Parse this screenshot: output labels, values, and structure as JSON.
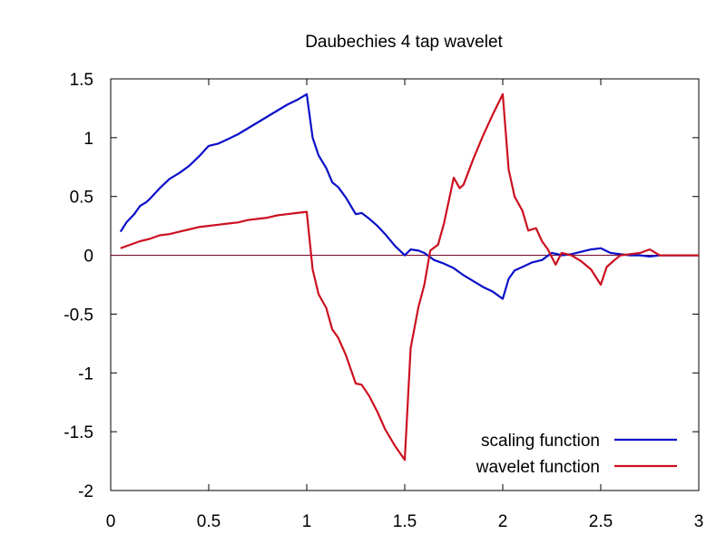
{
  "chart_data": {
    "type": "line",
    "title": "Daubechies 4 tap wavelet",
    "xlabel": "",
    "ylabel": "",
    "xlim": [
      0,
      3
    ],
    "ylim": [
      -2,
      1.5
    ],
    "x_ticks": [
      0,
      0.5,
      1,
      1.5,
      2,
      2.5,
      3
    ],
    "x_tick_labels": [
      "0",
      "0.5",
      "1",
      "1.5",
      "2",
      "2.5",
      "3"
    ],
    "y_ticks": [
      1.5,
      1,
      0.5,
      0,
      -0.5,
      -1,
      -1.5,
      -2
    ],
    "y_tick_labels": [
      "1.5",
      "1",
      "0.5",
      "0",
      "-0.5",
      "-1",
      "-1.5",
      "-2"
    ],
    "grid": false,
    "legend_position": "bottom-right",
    "zero_line_color": "#7a1030",
    "series": [
      {
        "name": "scaling function",
        "color": "#0a10c8",
        "x": [
          0.05,
          0.08,
          0.12,
          0.15,
          0.18,
          0.2,
          0.25,
          0.3,
          0.35,
          0.4,
          0.45,
          0.5,
          0.55,
          0.6,
          0.65,
          0.7,
          0.75,
          0.8,
          0.85,
          0.9,
          0.95,
          1.0,
          1.03,
          1.06,
          1.1,
          1.13,
          1.16,
          1.2,
          1.25,
          1.28,
          1.32,
          1.36,
          1.4,
          1.45,
          1.5,
          1.53,
          1.57,
          1.6,
          1.65,
          1.7,
          1.75,
          1.8,
          1.85,
          1.9,
          1.95,
          2.0,
          2.03,
          2.06,
          2.1,
          2.15,
          2.2,
          2.25,
          2.28,
          2.3,
          2.35,
          2.4,
          2.45,
          2.5,
          2.55,
          2.6,
          2.65,
          2.7,
          2.75,
          2.8,
          3.0
        ],
        "y": [
          0.2,
          0.28,
          0.35,
          0.42,
          0.45,
          0.48,
          0.57,
          0.65,
          0.7,
          0.76,
          0.84,
          0.93,
          0.95,
          0.99,
          1.03,
          1.08,
          1.13,
          1.18,
          1.23,
          1.28,
          1.32,
          1.37,
          1.0,
          0.85,
          0.74,
          0.62,
          0.58,
          0.49,
          0.35,
          0.36,
          0.31,
          0.25,
          0.18,
          0.08,
          0.0,
          0.05,
          0.04,
          0.02,
          -0.04,
          -0.07,
          -0.11,
          -0.17,
          -0.22,
          -0.27,
          -0.31,
          -0.37,
          -0.2,
          -0.13,
          -0.1,
          -0.06,
          -0.04,
          0.02,
          0.01,
          0.0,
          0.01,
          0.03,
          0.05,
          0.06,
          0.02,
          0.01,
          0.0,
          0.0,
          -0.01,
          0.0,
          0.0
        ]
      },
      {
        "name": "wavelet function",
        "color": "#cc1020",
        "x": [
          0.05,
          0.1,
          0.15,
          0.2,
          0.25,
          0.3,
          0.35,
          0.4,
          0.45,
          0.5,
          0.55,
          0.6,
          0.65,
          0.7,
          0.75,
          0.8,
          0.85,
          0.9,
          0.95,
          1.0,
          1.03,
          1.06,
          1.1,
          1.13,
          1.16,
          1.2,
          1.25,
          1.28,
          1.32,
          1.36,
          1.4,
          1.45,
          1.5,
          1.53,
          1.57,
          1.6,
          1.63,
          1.67,
          1.7,
          1.75,
          1.78,
          1.8,
          1.85,
          1.9,
          1.95,
          2.0,
          2.03,
          2.06,
          2.1,
          2.13,
          2.17,
          2.2,
          2.23,
          2.27,
          2.3,
          2.35,
          2.4,
          2.45,
          2.5,
          2.53,
          2.57,
          2.6,
          2.65,
          2.7,
          2.75,
          2.8,
          3.0
        ],
        "y": [
          0.06,
          0.09,
          0.12,
          0.14,
          0.17,
          0.18,
          0.2,
          0.22,
          0.24,
          0.25,
          0.26,
          0.27,
          0.28,
          0.3,
          0.31,
          0.32,
          0.34,
          0.35,
          0.36,
          0.37,
          -0.12,
          -0.33,
          -0.45,
          -0.63,
          -0.7,
          -0.85,
          -1.09,
          -1.1,
          -1.2,
          -1.33,
          -1.48,
          -1.62,
          -1.74,
          -0.79,
          -0.44,
          -0.25,
          0.04,
          0.09,
          0.27,
          0.66,
          0.57,
          0.6,
          0.82,
          1.02,
          1.2,
          1.37,
          0.73,
          0.5,
          0.38,
          0.21,
          0.23,
          0.12,
          0.05,
          -0.08,
          0.02,
          0.0,
          -0.05,
          -0.12,
          -0.25,
          -0.1,
          -0.04,
          0.0,
          0.01,
          0.02,
          0.05,
          0.0,
          0.0
        ]
      }
    ]
  }
}
